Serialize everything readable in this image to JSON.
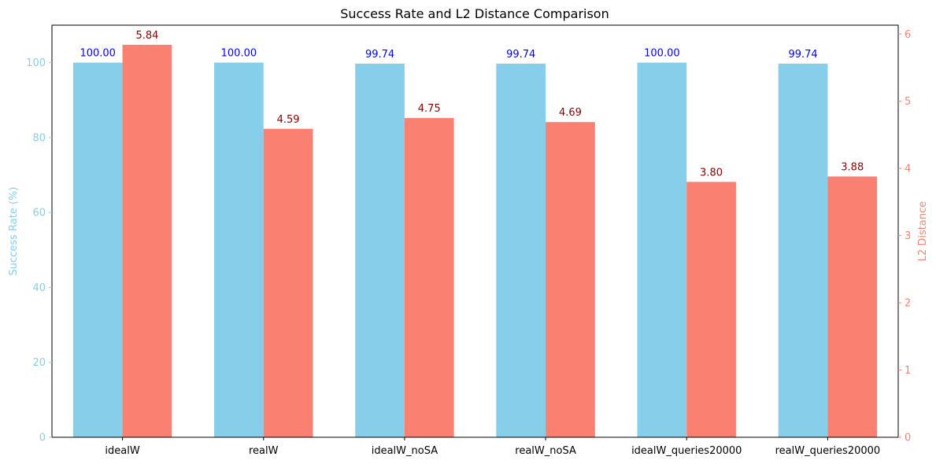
{
  "chart_data": {
    "type": "bar",
    "title": "Success Rate and L2 Distance Comparison",
    "categories": [
      "idealW",
      "realW",
      "idealW_noSA",
      "realW_noSA",
      "idealW_queries20000",
      "realW_queries20000"
    ],
    "series": [
      {
        "name": "Success Rate (%)",
        "axis": "left",
        "color": "#87CEEB",
        "label_color": "#0000FF",
        "values": [
          100.0,
          100.0,
          99.74,
          99.74,
          100.0,
          99.74
        ],
        "labels": [
          "100.00",
          "100.00",
          "99.74",
          "99.74",
          "100.00",
          "99.74"
        ]
      },
      {
        "name": "L2 Distance",
        "axis": "right",
        "color": "#FA8072",
        "label_color": "#8B0000",
        "values": [
          5.84,
          4.59,
          4.75,
          4.69,
          3.8,
          3.88
        ],
        "labels": [
          "5.84",
          "4.59",
          "4.75",
          "4.69",
          "3.80",
          "3.88"
        ]
      }
    ],
    "y_left": {
      "label": "Success Rate (%)",
      "ylim": [
        0,
        110
      ],
      "ticks": [
        0,
        20,
        40,
        60,
        80,
        100
      ],
      "tick_labels": [
        "0",
        "20",
        "40",
        "60",
        "80",
        "100"
      ],
      "color": "#87CEEB"
    },
    "y_right": {
      "label": "L2 Distance",
      "ylim": [
        0,
        6.132
      ],
      "ticks": [
        0,
        1,
        2,
        3,
        4,
        5,
        6
      ],
      "tick_labels": [
        "0",
        "1",
        "2",
        "3",
        "4",
        "5",
        "6"
      ],
      "color": "#FA8072"
    },
    "grid": false,
    "legend": "none"
  }
}
